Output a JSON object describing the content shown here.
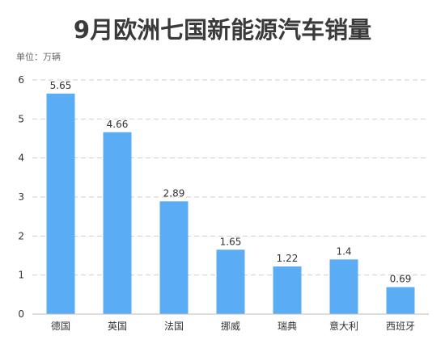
{
  "title": "9月欧洲七国新能源汽车销量",
  "unit_label": "单位：万辆",
  "colors": {
    "bar": "#5aadf5",
    "title": "#3a3a3a"
  },
  "chart_data": {
    "type": "bar",
    "title": "9月欧洲七国新能源汽车销量",
    "unit": "单位：万辆",
    "categories": [
      "德国",
      "英国",
      "法国",
      "挪威",
      "瑞典",
      "意大利",
      "西班牙"
    ],
    "values": [
      5.65,
      4.66,
      2.89,
      1.65,
      1.22,
      1.4,
      0.69
    ],
    "value_labels": [
      "5.65",
      "4.66",
      "2.89",
      "1.65",
      "1.22",
      "1.4",
      "0.69"
    ],
    "ylim": [
      0,
      6
    ],
    "yticks": [
      0,
      1,
      2,
      3,
      4,
      5,
      6
    ],
    "grid": true,
    "legend": "none"
  }
}
